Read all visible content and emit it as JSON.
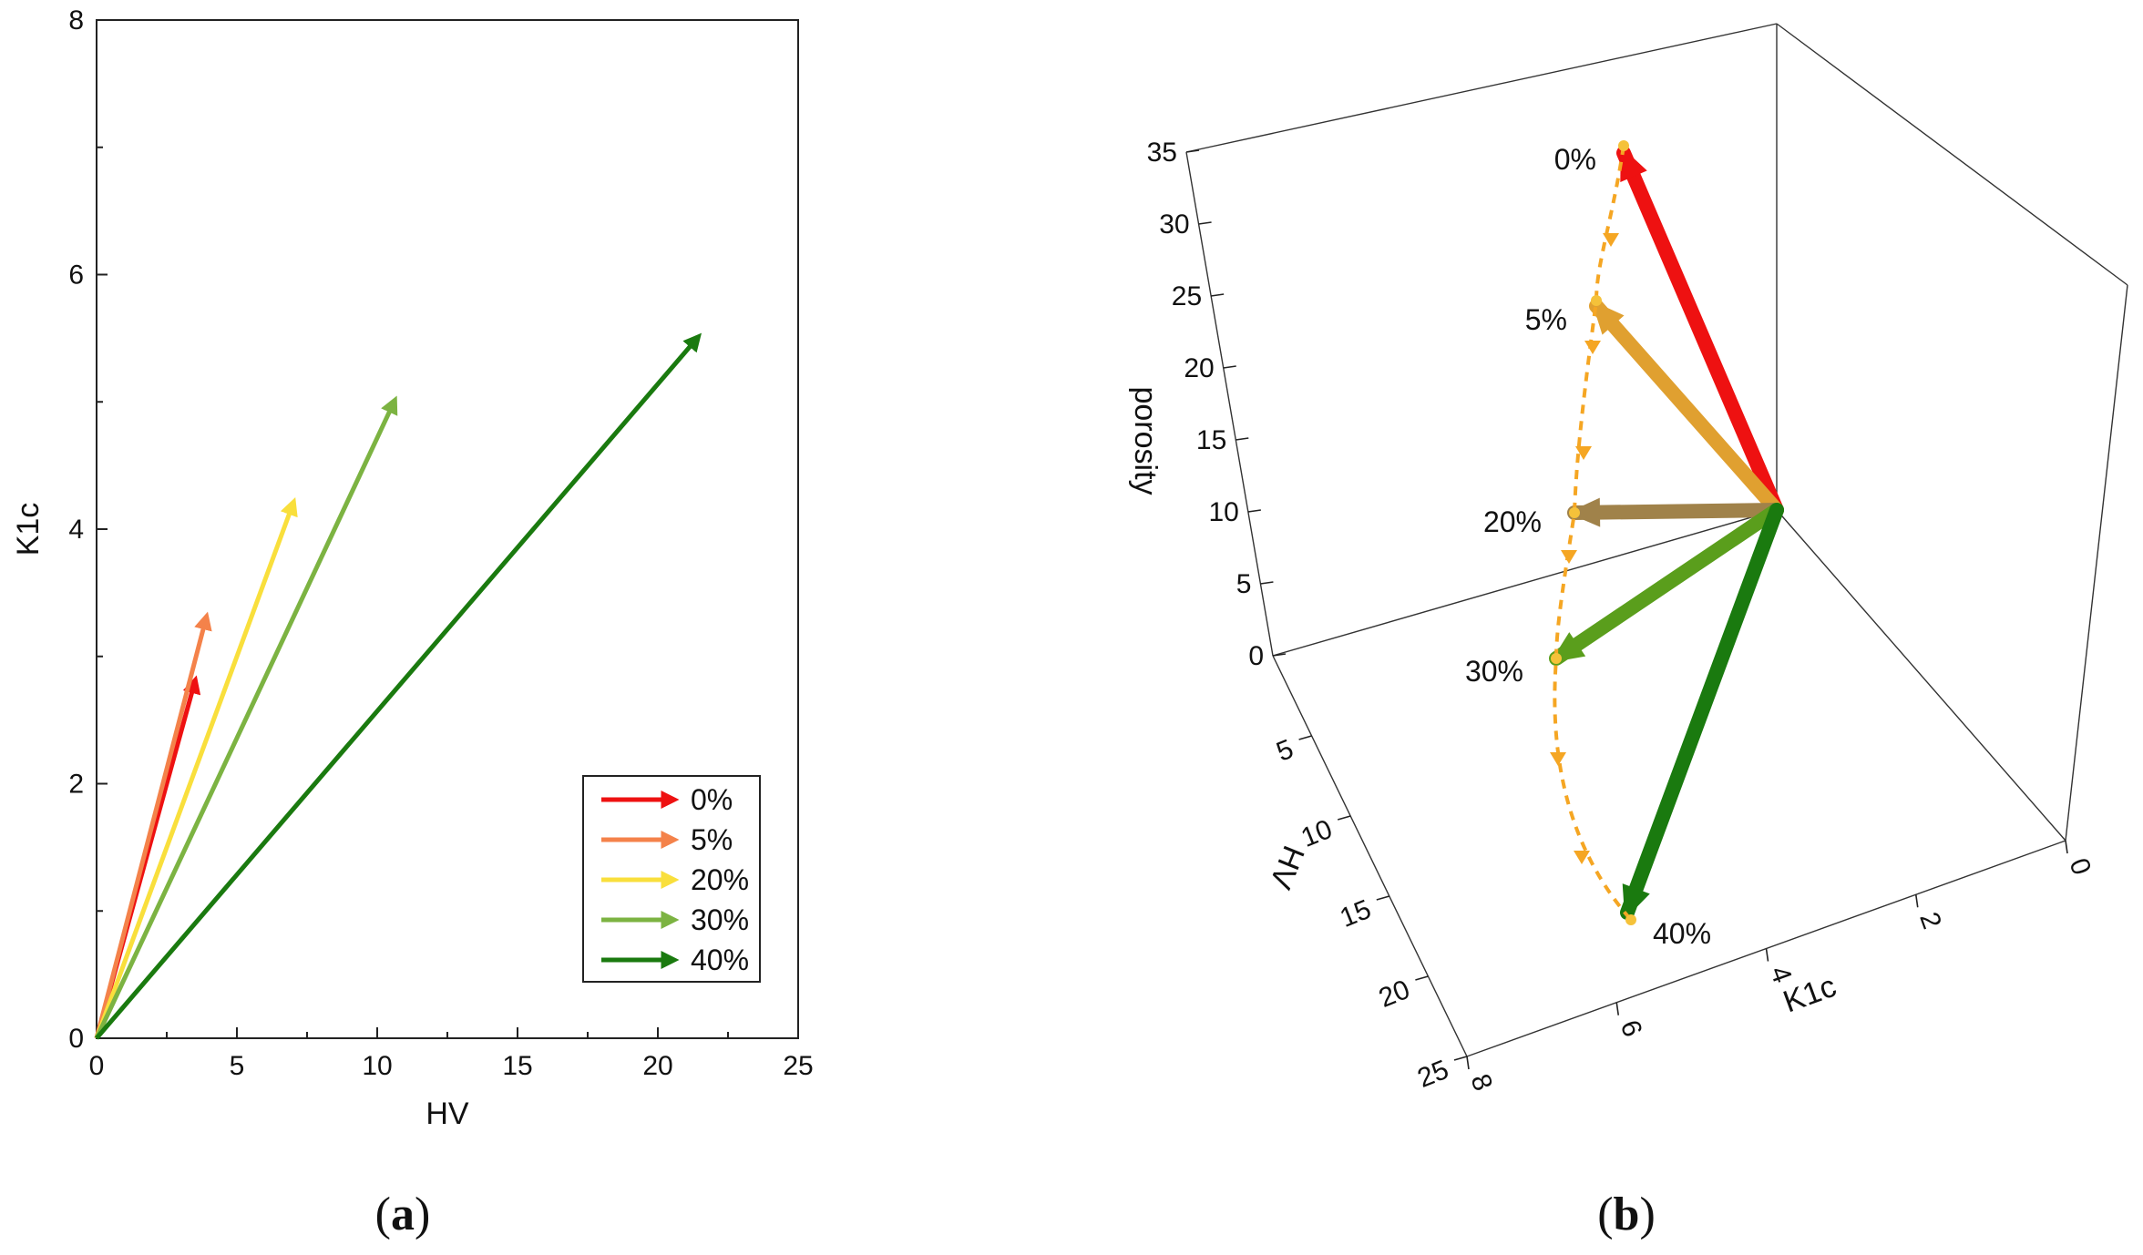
{
  "chart_data": [
    {
      "panel": "a",
      "type": "line",
      "title": "",
      "xlabel": "HV",
      "ylabel": "K1c",
      "xlim": [
        0,
        25
      ],
      "ylim": [
        0,
        8
      ],
      "xticks": [
        "0",
        "5",
        "10",
        "15",
        "20",
        "25"
      ],
      "yticks": [
        "0",
        "2",
        "4",
        "6",
        "8"
      ],
      "legend_position": "bottom-right",
      "series": [
        {
          "name": "0%",
          "color": "#ee1111",
          "start": [
            0,
            0
          ],
          "end": [
            3.5,
            2.8
          ]
        },
        {
          "name": "5%",
          "color": "#f4824a",
          "start": [
            0,
            0
          ],
          "end": [
            3.9,
            3.3
          ]
        },
        {
          "name": "20%",
          "color": "#f9df3c",
          "start": [
            0,
            0
          ],
          "end": [
            7.0,
            4.2
          ]
        },
        {
          "name": "30%",
          "color": "#7cb342",
          "start": [
            0,
            0
          ],
          "end": [
            10.6,
            5.0
          ]
        },
        {
          "name": "40%",
          "color": "#1a7a0f",
          "start": [
            0,
            0
          ],
          "end": [
            21.4,
            5.5
          ]
        }
      ]
    },
    {
      "panel": "b",
      "type": "line",
      "projection": "3d",
      "title": "",
      "xlabel": "K1c",
      "ylabel": "HV",
      "zlabel": "porosity",
      "xlim": [
        0,
        8
      ],
      "ylim": [
        0,
        25
      ],
      "zlim": [
        0,
        35
      ],
      "xticks": [
        "0",
        "2",
        "4",
        "6",
        "8"
      ],
      "yticks": [
        "5",
        "10",
        "15",
        "20",
        "25"
      ],
      "zticks": [
        "0",
        "5",
        "10",
        "15",
        "20",
        "25",
        "30",
        "35"
      ],
      "series": [
        {
          "name": "0%",
          "label": "0%",
          "color": "#ee1111"
        },
        {
          "name": "5%",
          "label": "5%",
          "color": "#e0a030"
        },
        {
          "name": "20%",
          "label": "20%",
          "color": "#a0824a"
        },
        {
          "name": "30%",
          "label": "30%",
          "color": "#5a9e1c"
        },
        {
          "name": "40%",
          "label": "40%",
          "color": "#1a7a0f"
        }
      ],
      "trajectory_color": "#f5a623"
    }
  ],
  "panel_labels": {
    "a": "(a)",
    "b": "(b)",
    "a_letter": "a",
    "b_letter": "b"
  }
}
